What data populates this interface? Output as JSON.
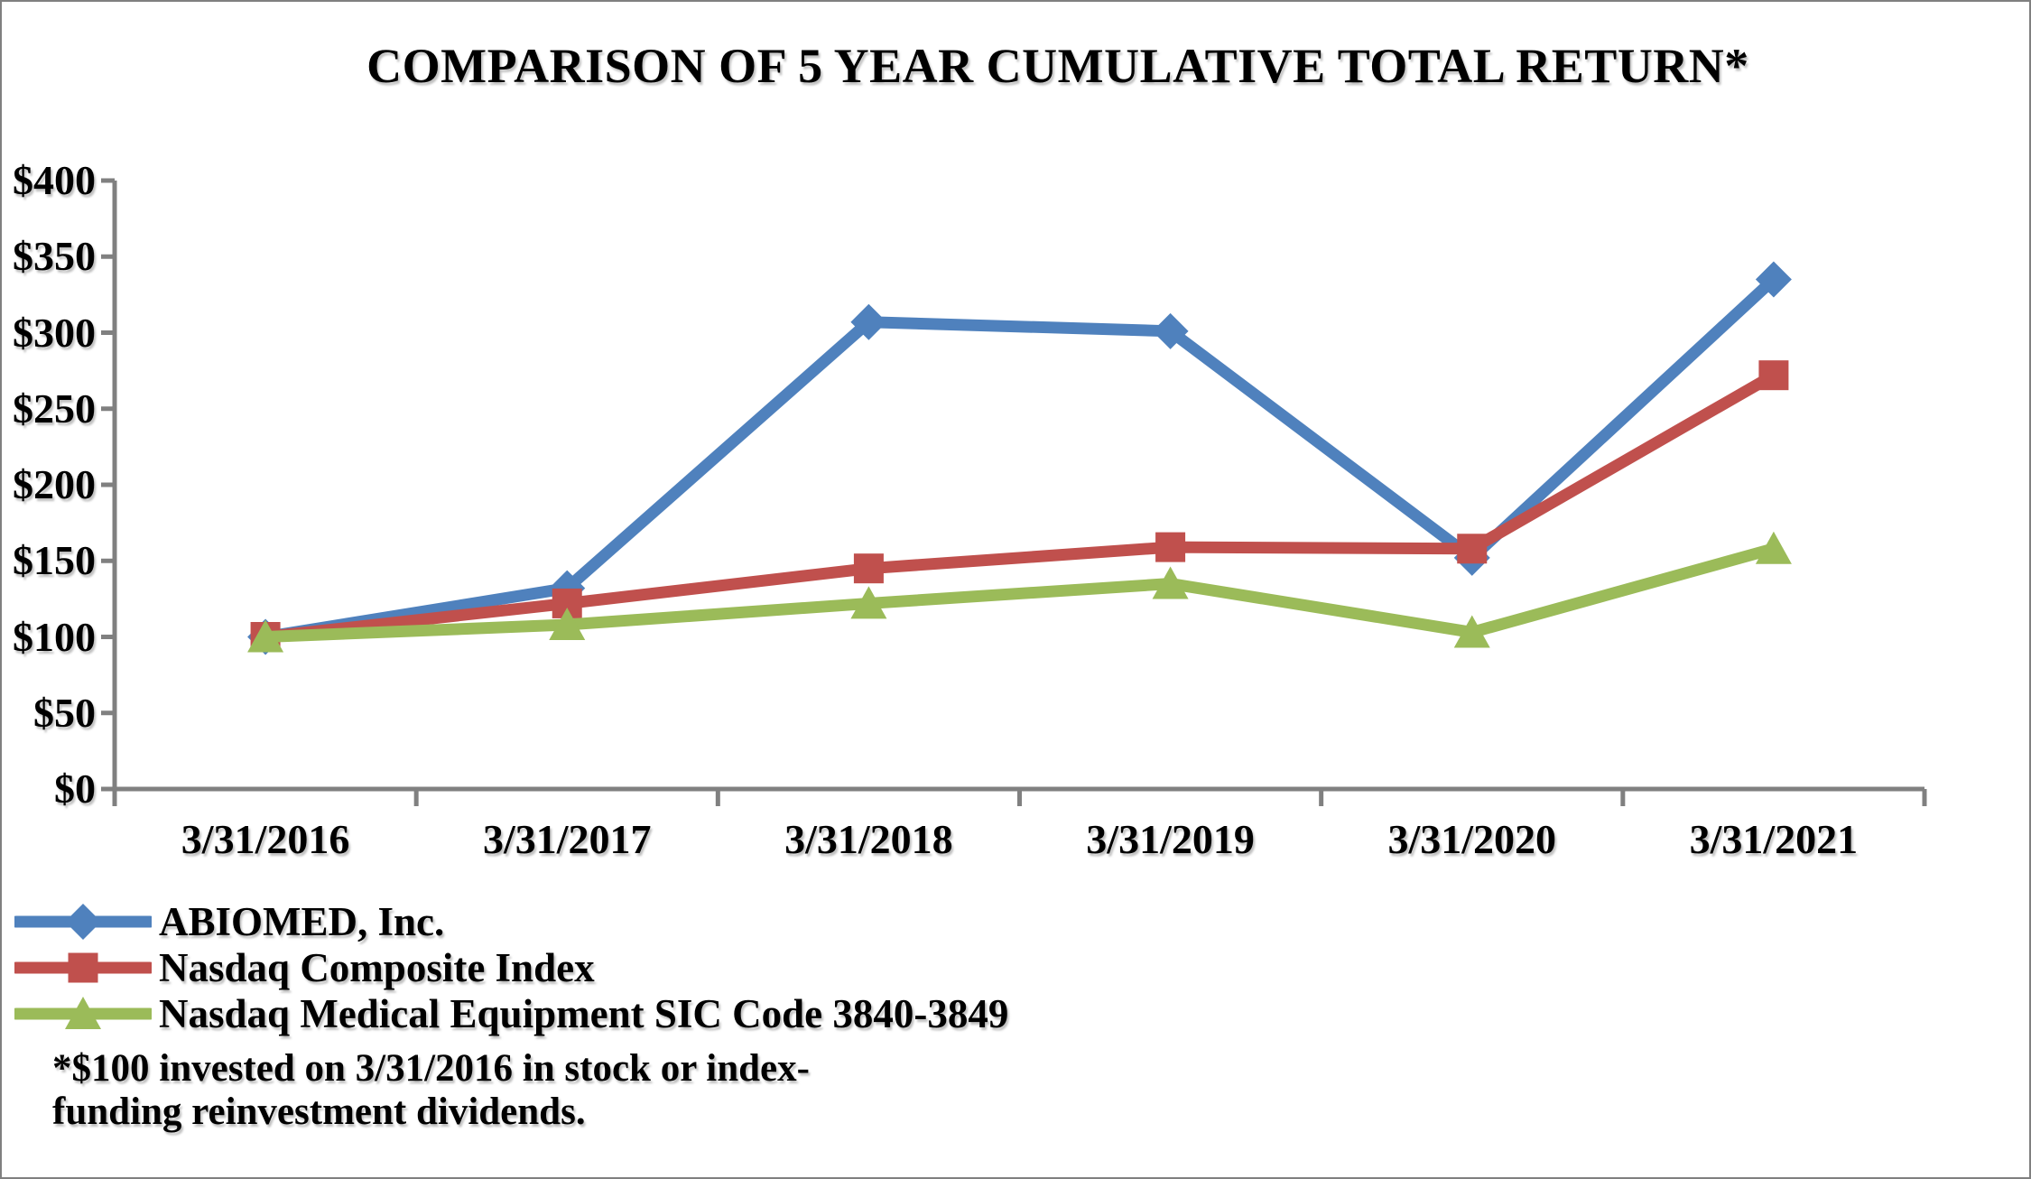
{
  "page": {
    "background": "#ffffff",
    "border_color": "#808080"
  },
  "chart_data": {
    "type": "line",
    "title": "COMPARISON OF 5 YEAR CUMULATIVE TOTAL RETURN*",
    "x": [
      "3/31/2016",
      "3/31/2017",
      "3/31/2018",
      "3/31/2019",
      "3/31/2020",
      "3/31/2021"
    ],
    "series": [
      {
        "name": "ABIOMED, Inc.",
        "color": "#4F81BD",
        "marker": "diamond",
        "values": [
          100,
          132,
          307,
          301,
          152,
          335
        ]
      },
      {
        "name": "Nasdaq Composite Index",
        "color": "#C0504D",
        "marker": "square",
        "values": [
          100,
          122,
          145,
          159,
          158,
          272
        ]
      },
      {
        "name": "Nasdaq Medical Equipment SIC Code 3840-3849",
        "color": "#9BBB59",
        "marker": "triangle",
        "values": [
          100,
          108,
          122,
          135,
          103,
          158
        ]
      }
    ],
    "y_axis": {
      "min": 0,
      "max": 400,
      "step": 50
    },
    "y_tick_labels": [
      "$0",
      "$50",
      "$100",
      "$150",
      "$200",
      "$250",
      "$300",
      "$350",
      "$400"
    ],
    "axis_color": "#808080",
    "grid": false,
    "legend_position": "bottom-left"
  },
  "footnote": {
    "line1": "*$100 invested on 3/31/2016 in stock or index-",
    "line2": "funding reinvestment dividends."
  }
}
